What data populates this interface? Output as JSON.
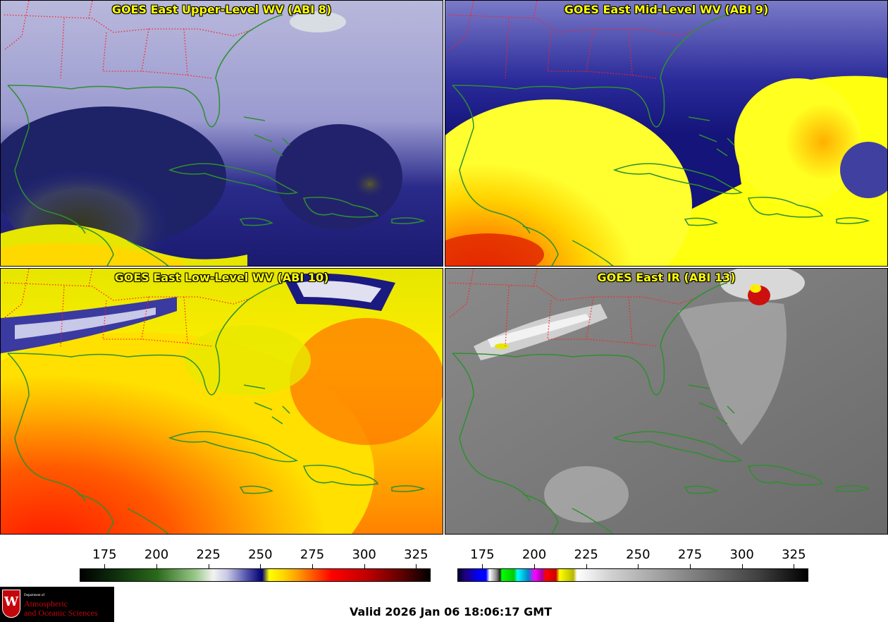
{
  "panels": [
    {
      "title": "GOES East Upper-Level WV (ABI 8)",
      "palette": "wv"
    },
    {
      "title": "GOES East Mid-Level WV (ABI 9)",
      "palette": "wv"
    },
    {
      "title": "GOES East Low-Level WV (ABI 10)",
      "palette": "wv"
    },
    {
      "title": "GOES East IR (ABI 13)",
      "palette": "ir"
    }
  ],
  "colorbars": {
    "left": {
      "ticks": [
        "175",
        "200",
        "225",
        "250",
        "275",
        "300",
        "325"
      ],
      "tick_values": [
        175,
        200,
        225,
        250,
        275,
        300,
        325
      ],
      "range": [
        163,
        332
      ]
    },
    "right": {
      "ticks": [
        "175",
        "200",
        "225",
        "250",
        "275",
        "300",
        "325"
      ],
      "tick_values": [
        175,
        200,
        225,
        250,
        275,
        300,
        325
      ],
      "range": [
        163,
        332
      ]
    }
  },
  "colors": {
    "coastline": "#2f8f2f",
    "state_borders": "#ff2020",
    "title_text": "#ffff00"
  },
  "logo": {
    "seal": "W",
    "department": "Department of",
    "line1": "Atmospheric",
    "line2": "and Oceanic Sciences"
  },
  "valid_time": "Valid 2026 Jan 06 18:06:17 GMT"
}
